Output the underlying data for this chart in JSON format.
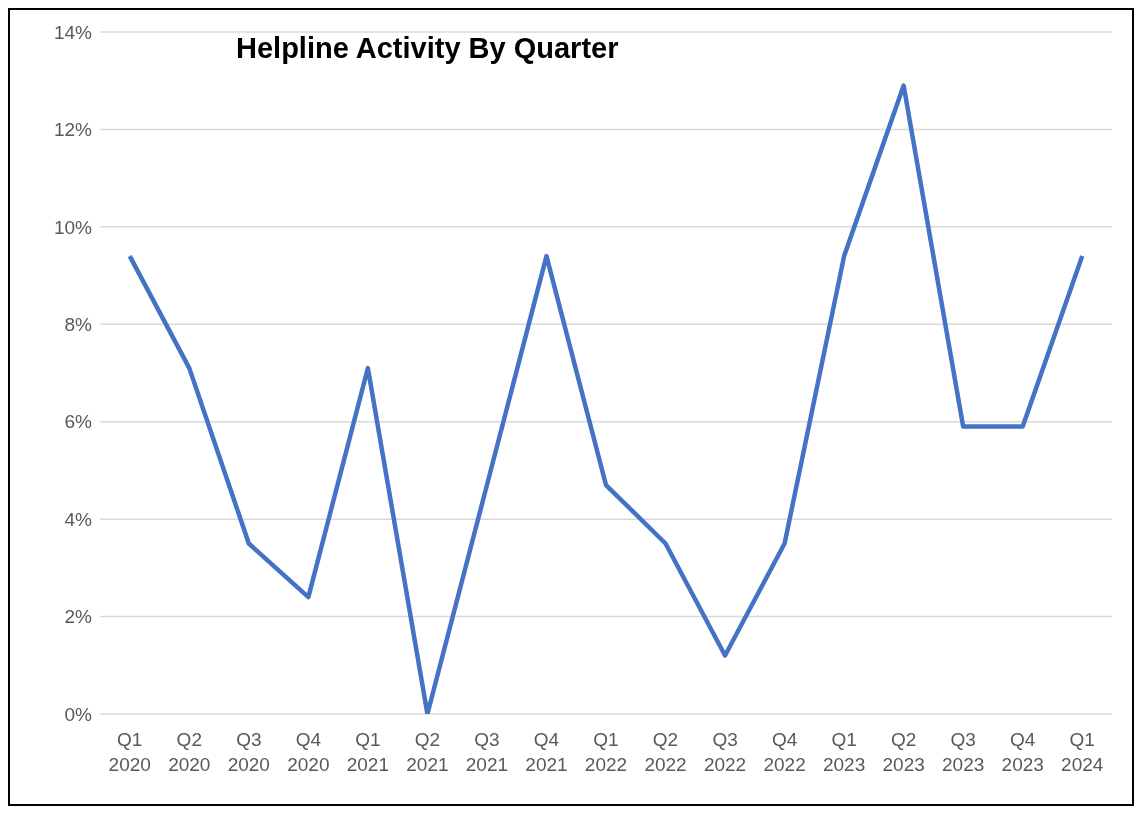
{
  "chart_data": {
    "type": "line",
    "title": "Helpline Activity By Quarter",
    "categories": [
      "Q1 2020",
      "Q2 2020",
      "Q3 2020",
      "Q4 2020",
      "Q1 2021",
      "Q2 2021",
      "Q3 2021",
      "Q4 2021",
      "Q1 2022",
      "Q2 2022",
      "Q3 2022",
      "Q4 2022",
      "Q1 2023",
      "Q2 2023",
      "Q3 2023",
      "Q4 2023",
      "Q1 2024"
    ],
    "series": [
      {
        "color": "#4472c4",
        "values": [
          9.4,
          7.1,
          3.5,
          2.4,
          7.1,
          0,
          4.7,
          9.4,
          4.7,
          3.5,
          1.2,
          3.5,
          9.4,
          12.9,
          5.9,
          5.9,
          9.4
        ]
      }
    ],
    "ylim": [
      0,
      14
    ],
    "yticks": [
      {
        "value": 0,
        "label": "0%"
      },
      {
        "value": 2,
        "label": "2%"
      },
      {
        "value": 4,
        "label": "4%"
      },
      {
        "value": 6,
        "label": "6%"
      },
      {
        "value": 8,
        "label": "8%"
      },
      {
        "value": 10,
        "label": "10%"
      },
      {
        "value": 12,
        "label": "12%"
      },
      {
        "value": 14,
        "label": "14%"
      }
    ],
    "grid": "y",
    "marker": "none",
    "line_style": "solid",
    "legend": false
  }
}
